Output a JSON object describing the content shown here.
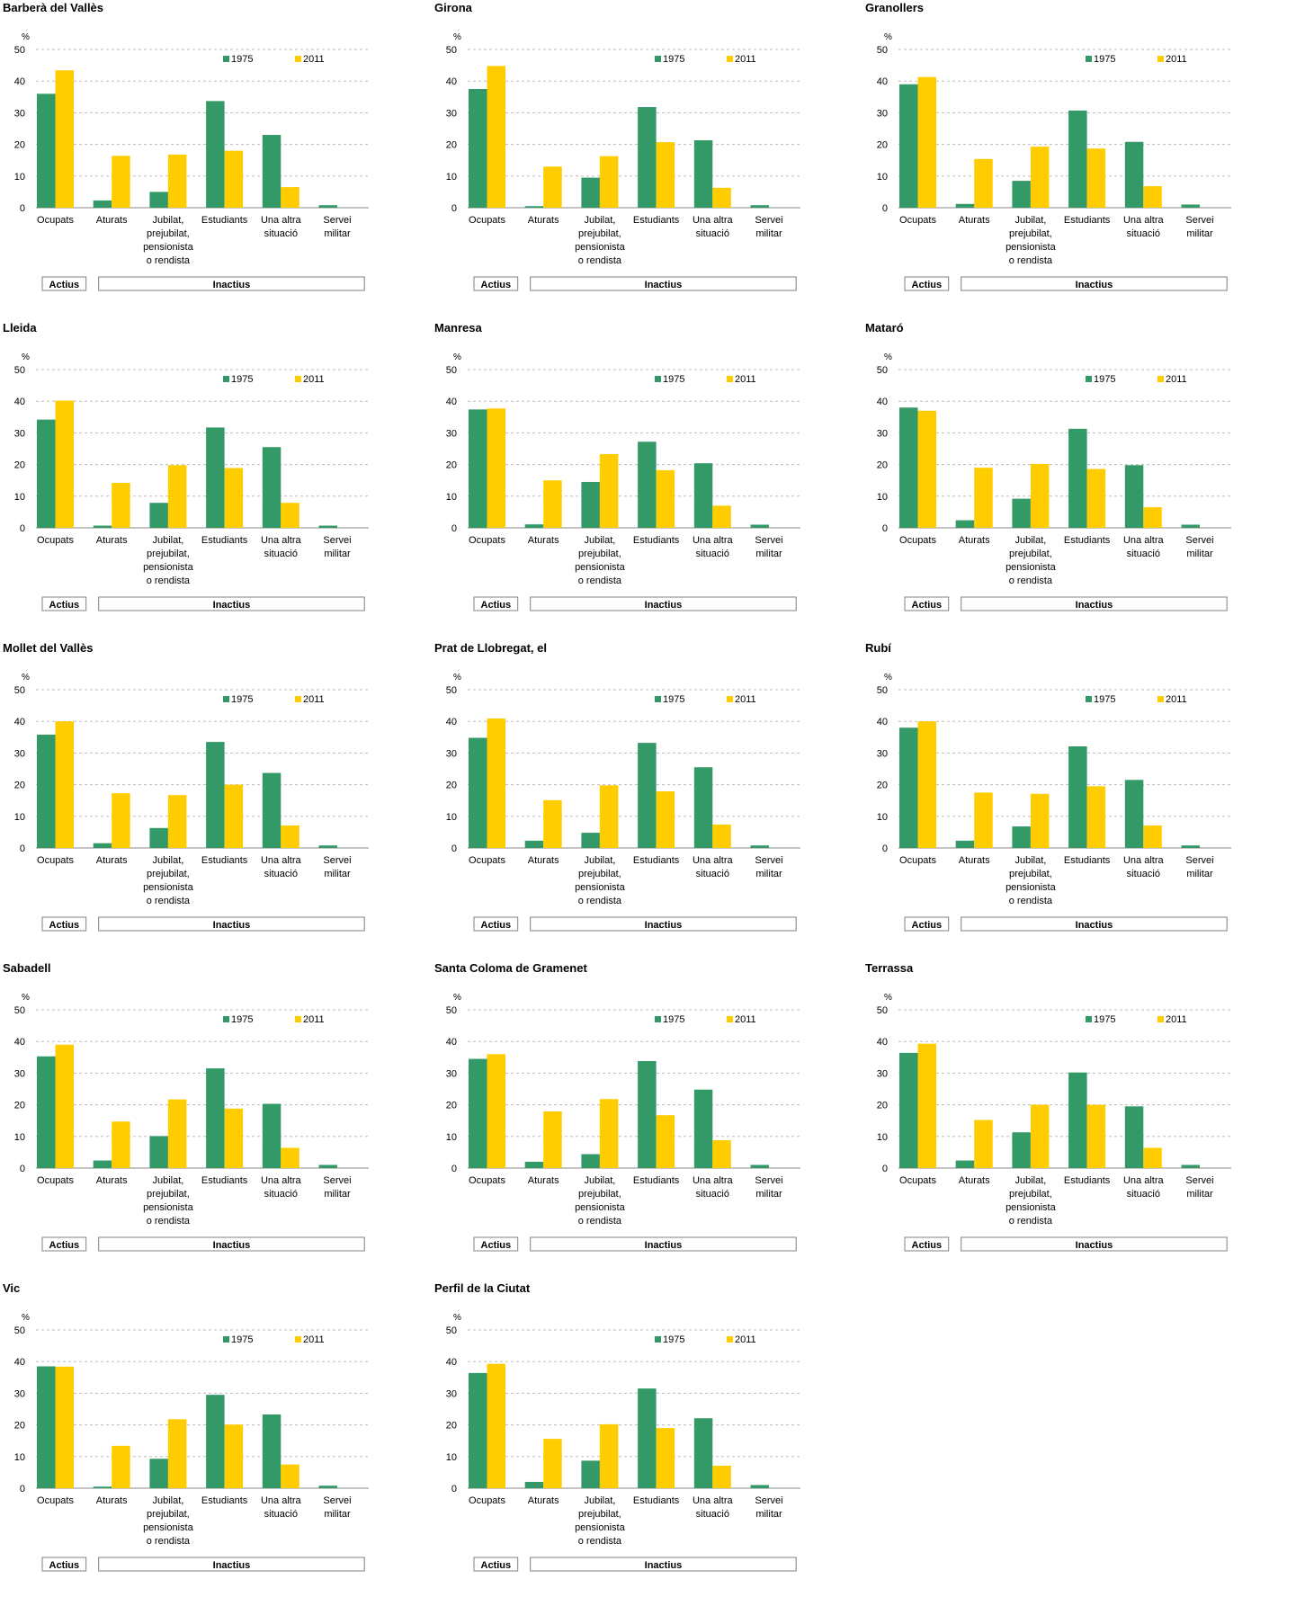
{
  "shared": {
    "unit": "%",
    "y_ticks": [
      "0",
      "10",
      "20",
      "30",
      "40",
      "50"
    ],
    "ylim": [
      0,
      50
    ],
    "category_lines": [
      [
        "Ocupats"
      ],
      [
        "Aturats"
      ],
      [
        "Jubilat,",
        "prejubilat,",
        "pensionista",
        "o rendista"
      ],
      [
        "Estudiants"
      ],
      [
        "Una altra",
        "situació"
      ],
      [
        "Servei",
        "militar"
      ]
    ],
    "groups": [
      {
        "label": "Actius",
        "span": [
          0,
          0
        ]
      },
      {
        "label": "Inactius",
        "span": [
          1,
          5
        ]
      }
    ],
    "legend_placement": "top-right",
    "grid": "dashed horizontal",
    "colors": {
      "1975": "#339966",
      "2011": "#ffcc00"
    }
  },
  "chart_data": [
    {
      "type": "bar",
      "title": "Barberà del Vallès",
      "categories": [
        "Ocupats",
        "Aturats",
        "Jubilat, prejubilat, pensionista o rendista",
        "Estudiants",
        "Una altra situació",
        "Servei militar"
      ],
      "ylabel": "%",
      "ylim": [
        0,
        50
      ],
      "series": [
        {
          "name": "1975",
          "values": [
            36.0,
            2.3,
            5.0,
            33.7,
            23.0,
            0.8
          ]
        },
        {
          "name": "2011",
          "values": [
            43.4,
            16.4,
            16.8,
            18.0,
            6.5,
            0.0
          ]
        }
      ]
    },
    {
      "type": "bar",
      "title": "Girona",
      "categories": [
        "Ocupats",
        "Aturats",
        "Jubilat, prejubilat, pensionista o rendista",
        "Estudiants",
        "Una altra situació",
        "Servei militar"
      ],
      "ylabel": "%",
      "ylim": [
        0,
        50
      ],
      "series": [
        {
          "name": "1975",
          "values": [
            37.5,
            0.5,
            9.5,
            31.8,
            21.3,
            0.8
          ]
        },
        {
          "name": "2011",
          "values": [
            44.8,
            13.0,
            16.3,
            20.7,
            6.3,
            0.0
          ]
        }
      ]
    },
    {
      "type": "bar",
      "title": "Granollers",
      "categories": [
        "Ocupats",
        "Aturats",
        "Jubilat, prejubilat, pensionista o rendista",
        "Estudiants",
        "Una altra situació",
        "Servei militar"
      ],
      "ylabel": "%",
      "ylim": [
        0,
        50
      ],
      "series": [
        {
          "name": "1975",
          "values": [
            39.0,
            1.2,
            8.5,
            30.7,
            20.8,
            1.0
          ]
        },
        {
          "name": "2011",
          "values": [
            41.3,
            15.4,
            19.3,
            18.7,
            6.8,
            0.0
          ]
        }
      ]
    },
    {
      "type": "bar",
      "title": "Lleida",
      "categories": [
        "Ocupats",
        "Aturats",
        "Jubilat, prejubilat, pensionista o rendista",
        "Estudiants",
        "Una altra situació",
        "Servei militar"
      ],
      "ylabel": "%",
      "ylim": [
        0,
        50
      ],
      "series": [
        {
          "name": "1975",
          "values": [
            34.2,
            0.7,
            7.9,
            31.7,
            25.5,
            0.7
          ]
        },
        {
          "name": "2011",
          "values": [
            40.2,
            14.2,
            19.8,
            18.9,
            7.9,
            0.0
          ]
        }
      ]
    },
    {
      "type": "bar",
      "title": "Manresa",
      "categories": [
        "Ocupats",
        "Aturats",
        "Jubilat, prejubilat, pensionista o rendista",
        "Estudiants",
        "Una altra situació",
        "Servei militar"
      ],
      "ylabel": "%",
      "ylim": [
        0,
        50
      ],
      "series": [
        {
          "name": "1975",
          "values": [
            37.4,
            1.1,
            14.5,
            27.2,
            20.4,
            1.0
          ]
        },
        {
          "name": "2011",
          "values": [
            37.7,
            15.0,
            23.3,
            18.2,
            7.0,
            0.0
          ]
        }
      ]
    },
    {
      "type": "bar",
      "title": "Mataró",
      "categories": [
        "Ocupats",
        "Aturats",
        "Jubilat, prejubilat, pensionista o rendista",
        "Estudiants",
        "Una altra situació",
        "Servei militar"
      ],
      "ylabel": "%",
      "ylim": [
        0,
        50
      ],
      "series": [
        {
          "name": "1975",
          "values": [
            38.0,
            2.4,
            9.2,
            31.3,
            19.8,
            1.0
          ]
        },
        {
          "name": "2011",
          "values": [
            37.0,
            19.0,
            20.2,
            18.6,
            6.5,
            0.0
          ]
        }
      ]
    },
    {
      "type": "bar",
      "title": "Mollet del Vallès",
      "categories": [
        "Ocupats",
        "Aturats",
        "Jubilat, prejubilat, pensionista o rendista",
        "Estudiants",
        "Una altra situació",
        "Servei militar"
      ],
      "ylabel": "%",
      "ylim": [
        0,
        50
      ],
      "series": [
        {
          "name": "1975",
          "values": [
            35.8,
            1.5,
            6.3,
            33.5,
            23.7,
            0.8
          ]
        },
        {
          "name": "2011",
          "values": [
            40.0,
            17.3,
            16.7,
            20.0,
            7.1,
            0.0
          ]
        }
      ]
    },
    {
      "type": "bar",
      "title": "Prat de Llobregat, el",
      "categories": [
        "Ocupats",
        "Aturats",
        "Jubilat, prejubilat, pensionista o rendista",
        "Estudiants",
        "Una altra situació",
        "Servei militar"
      ],
      "ylabel": "%",
      "ylim": [
        0,
        50
      ],
      "series": [
        {
          "name": "1975",
          "values": [
            34.8,
            2.3,
            4.8,
            33.2,
            25.5,
            0.8
          ]
        },
        {
          "name": "2011",
          "values": [
            40.9,
            15.1,
            19.8,
            17.9,
            7.4,
            0.0
          ]
        }
      ]
    },
    {
      "type": "bar",
      "title": "Rubí",
      "categories": [
        "Ocupats",
        "Aturats",
        "Jubilat, prejubilat, pensionista o rendista",
        "Estudiants",
        "Una altra situació",
        "Servei militar"
      ],
      "ylabel": "%",
      "ylim": [
        0,
        50
      ],
      "series": [
        {
          "name": "1975",
          "values": [
            38.0,
            2.3,
            6.8,
            32.1,
            21.5,
            0.8
          ]
        },
        {
          "name": "2011",
          "values": [
            40.0,
            17.5,
            17.1,
            19.5,
            7.1,
            0.0
          ]
        }
      ]
    },
    {
      "type": "bar",
      "title": "Sabadell",
      "categories": [
        "Ocupats",
        "Aturats",
        "Jubilat, prejubilat, pensionista o rendista",
        "Estudiants",
        "Una altra situació",
        "Servei militar"
      ],
      "ylabel": "%",
      "ylim": [
        0,
        50
      ],
      "series": [
        {
          "name": "1975",
          "values": [
            35.3,
            2.4,
            10.1,
            31.5,
            20.3,
            1.0
          ]
        },
        {
          "name": "2011",
          "values": [
            39.0,
            14.7,
            21.7,
            18.8,
            6.4,
            0.0
          ]
        }
      ]
    },
    {
      "type": "bar",
      "title": "Santa Coloma de Gramenet",
      "categories": [
        "Ocupats",
        "Aturats",
        "Jubilat, prejubilat, pensionista o rendista",
        "Estudiants",
        "Una altra situació",
        "Servei militar"
      ],
      "ylabel": "%",
      "ylim": [
        0,
        50
      ],
      "series": [
        {
          "name": "1975",
          "values": [
            34.5,
            2.0,
            4.4,
            33.8,
            24.8,
            1.0
          ]
        },
        {
          "name": "2011",
          "values": [
            36.0,
            17.9,
            21.8,
            16.7,
            8.8,
            0.0
          ]
        }
      ]
    },
    {
      "type": "bar",
      "title": "Terrassa",
      "categories": [
        "Ocupats",
        "Aturats",
        "Jubilat, prejubilat, pensionista o rendista",
        "Estudiants",
        "Una altra situació",
        "Servei militar"
      ],
      "ylabel": "%",
      "ylim": [
        0,
        50
      ],
      "series": [
        {
          "name": "1975",
          "values": [
            36.4,
            2.4,
            11.3,
            30.2,
            19.5,
            1.0
          ]
        },
        {
          "name": "2011",
          "values": [
            39.3,
            15.2,
            20.0,
            20.0,
            6.4,
            0.0
          ]
        }
      ]
    },
    {
      "type": "bar",
      "title": "Vic",
      "categories": [
        "Ocupats",
        "Aturats",
        "Jubilat, prejubilat, pensionista o rendista",
        "Estudiants",
        "Una altra situació",
        "Servei militar"
      ],
      "ylabel": "%",
      "ylim": [
        0,
        50
      ],
      "series": [
        {
          "name": "1975",
          "values": [
            38.5,
            0.5,
            9.3,
            29.5,
            23.3,
            0.8
          ]
        },
        {
          "name": "2011",
          "values": [
            38.4,
            13.4,
            21.8,
            20.1,
            7.5,
            0.0
          ]
        }
      ]
    },
    {
      "type": "bar",
      "title": "Perfil de la Ciutat",
      "categories": [
        "Ocupats",
        "Aturats",
        "Jubilat, prejubilat, pensionista o rendista",
        "Estudiants",
        "Una altra situació",
        "Servei militar"
      ],
      "ylabel": "%",
      "ylim": [
        0,
        50
      ],
      "series": [
        {
          "name": "1975",
          "values": [
            36.4,
            2.0,
            8.7,
            31.5,
            22.1,
            1.0
          ]
        },
        {
          "name": "2011",
          "values": [
            39.3,
            15.6,
            20.2,
            19.0,
            7.1,
            0.0
          ]
        }
      ]
    }
  ]
}
